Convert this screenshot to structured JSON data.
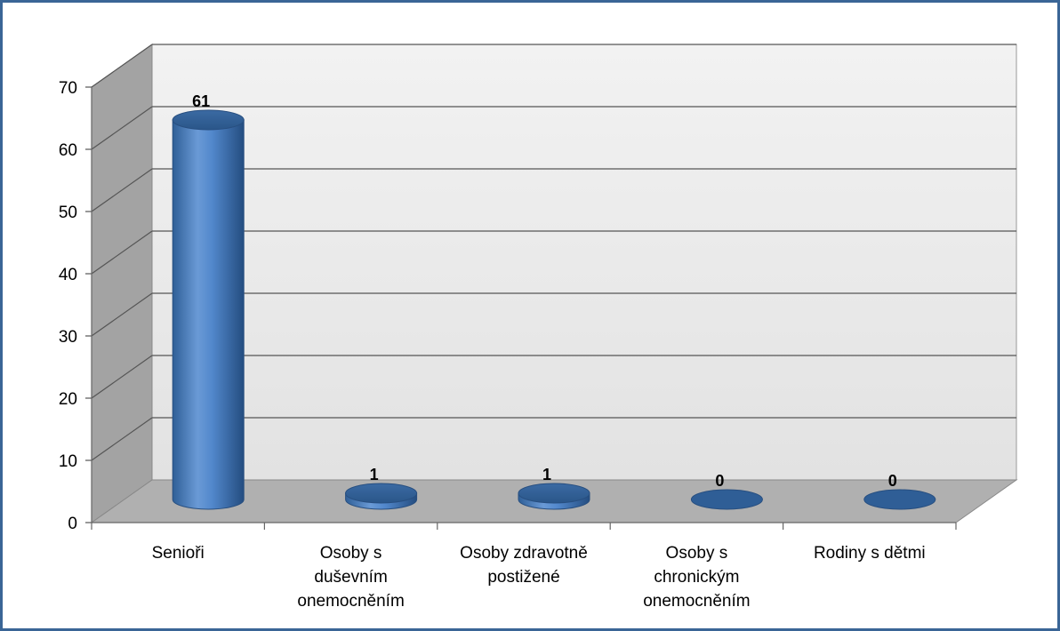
{
  "chart_data": {
    "type": "bar",
    "style": "3d-cylinder",
    "title": "",
    "xlabel": "",
    "ylabel": "",
    "categories": [
      [
        "Senioři"
      ],
      [
        "Osoby s",
        "duševním",
        "onemocněním"
      ],
      [
        "Osoby zdravotně",
        "postižené"
      ],
      [
        "Osoby s",
        "chronickým",
        "onemocněním"
      ],
      [
        "Rodiny s dětmi"
      ]
    ],
    "values": [
      61,
      1,
      1,
      0,
      0
    ],
    "data_labels": [
      "61",
      "1",
      "1",
      "0",
      "0"
    ],
    "ylim": [
      0,
      70
    ],
    "yticks": [
      0,
      10,
      20,
      30,
      40,
      50,
      60,
      70
    ],
    "grid": true,
    "legend": "none",
    "colors": {
      "bar_face": "#4f81bd",
      "bar_dark": "#2c5a8e",
      "bar_light": "#8fb4e3",
      "wall": "#ececec",
      "side_wall": "#a3a3a3",
      "floor": "#b0b0b0",
      "grid": "#555555",
      "frame": "#3a6596"
    }
  }
}
